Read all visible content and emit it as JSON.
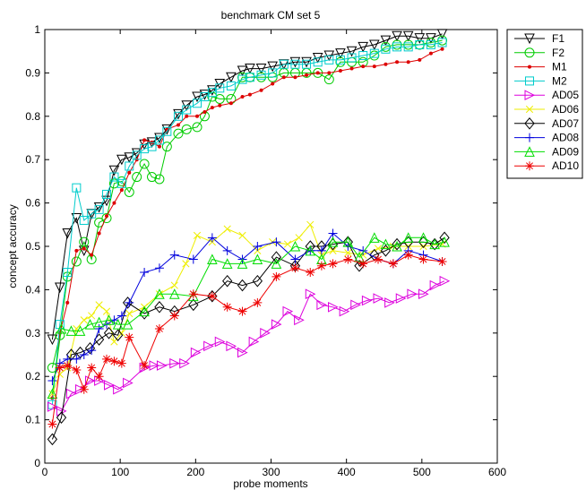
{
  "chart_data": {
    "type": "line",
    "title": "benchmark CM set 5",
    "xlabel": "probe moments",
    "ylabel": "concept accuracy",
    "xlim": [
      0,
      600
    ],
    "ylim": [
      0,
      1
    ],
    "xticks": [
      "0",
      "100",
      "200",
      "300",
      "400",
      "500",
      "600"
    ],
    "yticks": [
      "0",
      "0.1",
      "0.2",
      "0.3",
      "0.4",
      "0.5",
      "0.6",
      "0.7",
      "0.8",
      "0.9",
      "1"
    ],
    "grid": false,
    "legend_position": "outside-top-right",
    "series": [
      {
        "name": "F1",
        "color": "#000000",
        "marker": "triangle-down",
        "line_width": 1,
        "x": [
          10,
          20,
          30,
          42,
          52,
          62,
          72,
          82,
          92,
          102,
          112,
          122,
          132,
          142,
          152,
          162,
          177,
          188,
          202,
          212,
          222,
          232,
          247,
          262,
          272,
          287,
          302,
          317,
          332,
          347,
          362,
          377,
          392,
          407,
          422,
          437,
          452,
          467,
          482,
          497,
          512,
          527
        ],
        "y": [
          0.285,
          0.405,
          0.53,
          0.565,
          0.49,
          0.575,
          0.59,
          0.605,
          0.675,
          0.7,
          0.705,
          0.715,
          0.735,
          0.74,
          0.75,
          0.77,
          0.805,
          0.825,
          0.845,
          0.85,
          0.86,
          0.875,
          0.89,
          0.905,
          0.91,
          0.91,
          0.915,
          0.92,
          0.925,
          0.925,
          0.935,
          0.94,
          0.945,
          0.95,
          0.96,
          0.965,
          0.975,
          0.985,
          0.985,
          0.98,
          0.98,
          0.99
        ]
      },
      {
        "name": "F2",
        "color": "#00cc00",
        "marker": "circle",
        "line_width": 1,
        "x": [
          10,
          20,
          30,
          42,
          52,
          62,
          72,
          82,
          92,
          102,
          112,
          122,
          132,
          142,
          152,
          162,
          177,
          188,
          202,
          212,
          222,
          232,
          247,
          262,
          272,
          287,
          302,
          317,
          332,
          347,
          362,
          377,
          392,
          407,
          422,
          437,
          452,
          467,
          482,
          497,
          512,
          527
        ],
        "y": [
          0.22,
          0.295,
          0.43,
          0.465,
          0.51,
          0.47,
          0.555,
          0.565,
          0.645,
          0.65,
          0.625,
          0.66,
          0.69,
          0.66,
          0.655,
          0.73,
          0.76,
          0.77,
          0.775,
          0.8,
          0.845,
          0.84,
          0.84,
          0.89,
          0.89,
          0.89,
          0.89,
          0.9,
          0.9,
          0.9,
          0.9,
          0.885,
          0.925,
          0.925,
          0.925,
          0.94,
          0.96,
          0.965,
          0.965,
          0.965,
          0.97,
          0.975
        ]
      },
      {
        "name": "M1",
        "color": "#dd0000",
        "marker": "point",
        "line_width": 1,
        "x": [
          10,
          20,
          30,
          42,
          52,
          62,
          72,
          82,
          92,
          102,
          112,
          122,
          132,
          142,
          152,
          162,
          177,
          188,
          202,
          212,
          222,
          232,
          247,
          262,
          272,
          287,
          302,
          317,
          332,
          347,
          362,
          377,
          392,
          407,
          422,
          437,
          452,
          467,
          482,
          497,
          512,
          527
        ],
        "y": [
          0.15,
          0.3,
          0.37,
          0.49,
          0.495,
          0.48,
          0.53,
          0.57,
          0.6,
          0.63,
          0.67,
          0.7,
          0.745,
          0.74,
          0.73,
          0.77,
          0.78,
          0.8,
          0.8,
          0.81,
          0.82,
          0.825,
          0.83,
          0.845,
          0.85,
          0.86,
          0.875,
          0.89,
          0.89,
          0.895,
          0.9,
          0.9,
          0.905,
          0.91,
          0.915,
          0.915,
          0.92,
          0.925,
          0.925,
          0.93,
          0.945,
          0.955
        ]
      },
      {
        "name": "M2",
        "color": "#00cccc",
        "marker": "square",
        "line_width": 1,
        "x": [
          10,
          20,
          30,
          42,
          52,
          62,
          72,
          82,
          92,
          102,
          112,
          122,
          132,
          142,
          152,
          162,
          177,
          188,
          202,
          212,
          222,
          232,
          247,
          262,
          272,
          287,
          302,
          317,
          332,
          347,
          362,
          377,
          392,
          407,
          422,
          437,
          452,
          467,
          482,
          497,
          512,
          527
        ],
        "y": [
          0.135,
          0.32,
          0.44,
          0.635,
          0.56,
          0.575,
          0.585,
          0.62,
          0.66,
          0.645,
          0.685,
          0.71,
          0.725,
          0.73,
          0.745,
          0.765,
          0.8,
          0.815,
          0.83,
          0.845,
          0.855,
          0.865,
          0.87,
          0.885,
          0.89,
          0.895,
          0.9,
          0.92,
          0.92,
          0.92,
          0.925,
          0.93,
          0.93,
          0.935,
          0.94,
          0.945,
          0.955,
          0.96,
          0.96,
          0.965,
          0.965,
          0.97
        ]
      },
      {
        "name": "AD05",
        "color": "#dd00dd",
        "marker": "triangle-right",
        "line_width": 1,
        "x": [
          10,
          22,
          35,
          47,
          60,
          72,
          85,
          97,
          110,
          132,
          145,
          155,
          172,
          185,
          200,
          217,
          232,
          247,
          262,
          277,
          292,
          307,
          322,
          337,
          352,
          367,
          382,
          397,
          412,
          427,
          442,
          457,
          472,
          487,
          502,
          517,
          530
        ],
        "y": [
          0.13,
          0.12,
          0.16,
          0.17,
          0.19,
          0.19,
          0.18,
          0.17,
          0.185,
          0.22,
          0.225,
          0.225,
          0.23,
          0.23,
          0.255,
          0.27,
          0.28,
          0.27,
          0.255,
          0.28,
          0.3,
          0.32,
          0.35,
          0.33,
          0.39,
          0.365,
          0.36,
          0.35,
          0.365,
          0.375,
          0.38,
          0.37,
          0.38,
          0.39,
          0.39,
          0.41,
          0.42
        ]
      },
      {
        "name": "AD06",
        "color": "#eeee00",
        "marker": "x",
        "line_width": 1,
        "x": [
          10,
          20,
          30,
          42,
          52,
          62,
          72,
          82,
          92,
          102,
          112,
          132,
          152,
          172,
          187,
          202,
          222,
          242,
          262,
          282,
          302,
          322,
          337,
          352,
          367,
          382,
          402,
          422,
          442,
          462,
          482,
          502,
          527
        ],
        "y": [
          0.16,
          0.205,
          0.22,
          0.31,
          0.33,
          0.34,
          0.365,
          0.35,
          0.28,
          0.3,
          0.345,
          0.36,
          0.39,
          0.41,
          0.46,
          0.525,
          0.51,
          0.54,
          0.525,
          0.49,
          0.51,
          0.505,
          0.52,
          0.55,
          0.48,
          0.49,
          0.485,
          0.48,
          0.495,
          0.5,
          0.5,
          0.5,
          0.505
        ]
      },
      {
        "name": "AD07",
        "color": "#000000",
        "marker": "diamond",
        "line_width": 1,
        "x": [
          10,
          22,
          35,
          47,
          60,
          72,
          85,
          97,
          110,
          132,
          152,
          172,
          197,
          222,
          242,
          262,
          282,
          307,
          332,
          352,
          367,
          382,
          402,
          417,
          437,
          452,
          467,
          482,
          502,
          517,
          530
        ],
        "y": [
          0.055,
          0.105,
          0.25,
          0.255,
          0.265,
          0.285,
          0.3,
          0.295,
          0.37,
          0.345,
          0.36,
          0.35,
          0.365,
          0.385,
          0.42,
          0.41,
          0.42,
          0.475,
          0.455,
          0.5,
          0.5,
          0.505,
          0.51,
          0.455,
          0.48,
          0.49,
          0.505,
          0.51,
          0.51,
          0.505,
          0.52
        ]
      },
      {
        "name": "AD08",
        "color": "#0000dd",
        "marker": "plus",
        "line_width": 1,
        "x": [
          10,
          20,
          30,
          42,
          52,
          62,
          72,
          82,
          92,
          102,
          112,
          132,
          152,
          172,
          197,
          222,
          242,
          262,
          282,
          307,
          332,
          352,
          367,
          382,
          402,
          422,
          442,
          462,
          482,
          502,
          527
        ],
        "y": [
          0.19,
          0.23,
          0.24,
          0.24,
          0.25,
          0.26,
          0.31,
          0.32,
          0.33,
          0.34,
          0.37,
          0.44,
          0.45,
          0.48,
          0.47,
          0.52,
          0.49,
          0.47,
          0.5,
          0.51,
          0.47,
          0.49,
          0.49,
          0.53,
          0.5,
          0.49,
          0.47,
          0.46,
          0.49,
          0.48,
          0.465
        ]
      },
      {
        "name": "AD09",
        "color": "#00dd00",
        "marker": "triangle-up",
        "line_width": 1,
        "x": [
          10,
          22,
          35,
          47,
          60,
          72,
          85,
          97,
          110,
          132,
          152,
          172,
          197,
          222,
          242,
          262,
          282,
          307,
          332,
          352,
          367,
          382,
          402,
          417,
          437,
          452,
          467,
          482,
          502,
          517,
          530
        ],
        "y": [
          0.16,
          0.31,
          0.305,
          0.305,
          0.32,
          0.325,
          0.33,
          0.32,
          0.32,
          0.35,
          0.39,
          0.39,
          0.385,
          0.47,
          0.46,
          0.46,
          0.47,
          0.46,
          0.5,
          0.49,
          0.47,
          0.51,
          0.51,
          0.475,
          0.52,
          0.505,
          0.5,
          0.52,
          0.52,
          0.505,
          0.51
        ]
      },
      {
        "name": "AD10",
        "color": "#ee0000",
        "marker": "star",
        "line_width": 1,
        "x": [
          10,
          20,
          30,
          42,
          52,
          62,
          72,
          82,
          92,
          102,
          112,
          132,
          152,
          172,
          197,
          222,
          242,
          262,
          282,
          307,
          332,
          352,
          367,
          382,
          402,
          422,
          442,
          462,
          482,
          502,
          527
        ],
        "y": [
          0.09,
          0.22,
          0.225,
          0.215,
          0.17,
          0.22,
          0.2,
          0.24,
          0.235,
          0.23,
          0.29,
          0.225,
          0.31,
          0.34,
          0.39,
          0.385,
          0.36,
          0.35,
          0.37,
          0.43,
          0.45,
          0.44,
          0.455,
          0.46,
          0.47,
          0.46,
          0.47,
          0.46,
          0.48,
          0.47,
          0.465
        ]
      }
    ]
  }
}
